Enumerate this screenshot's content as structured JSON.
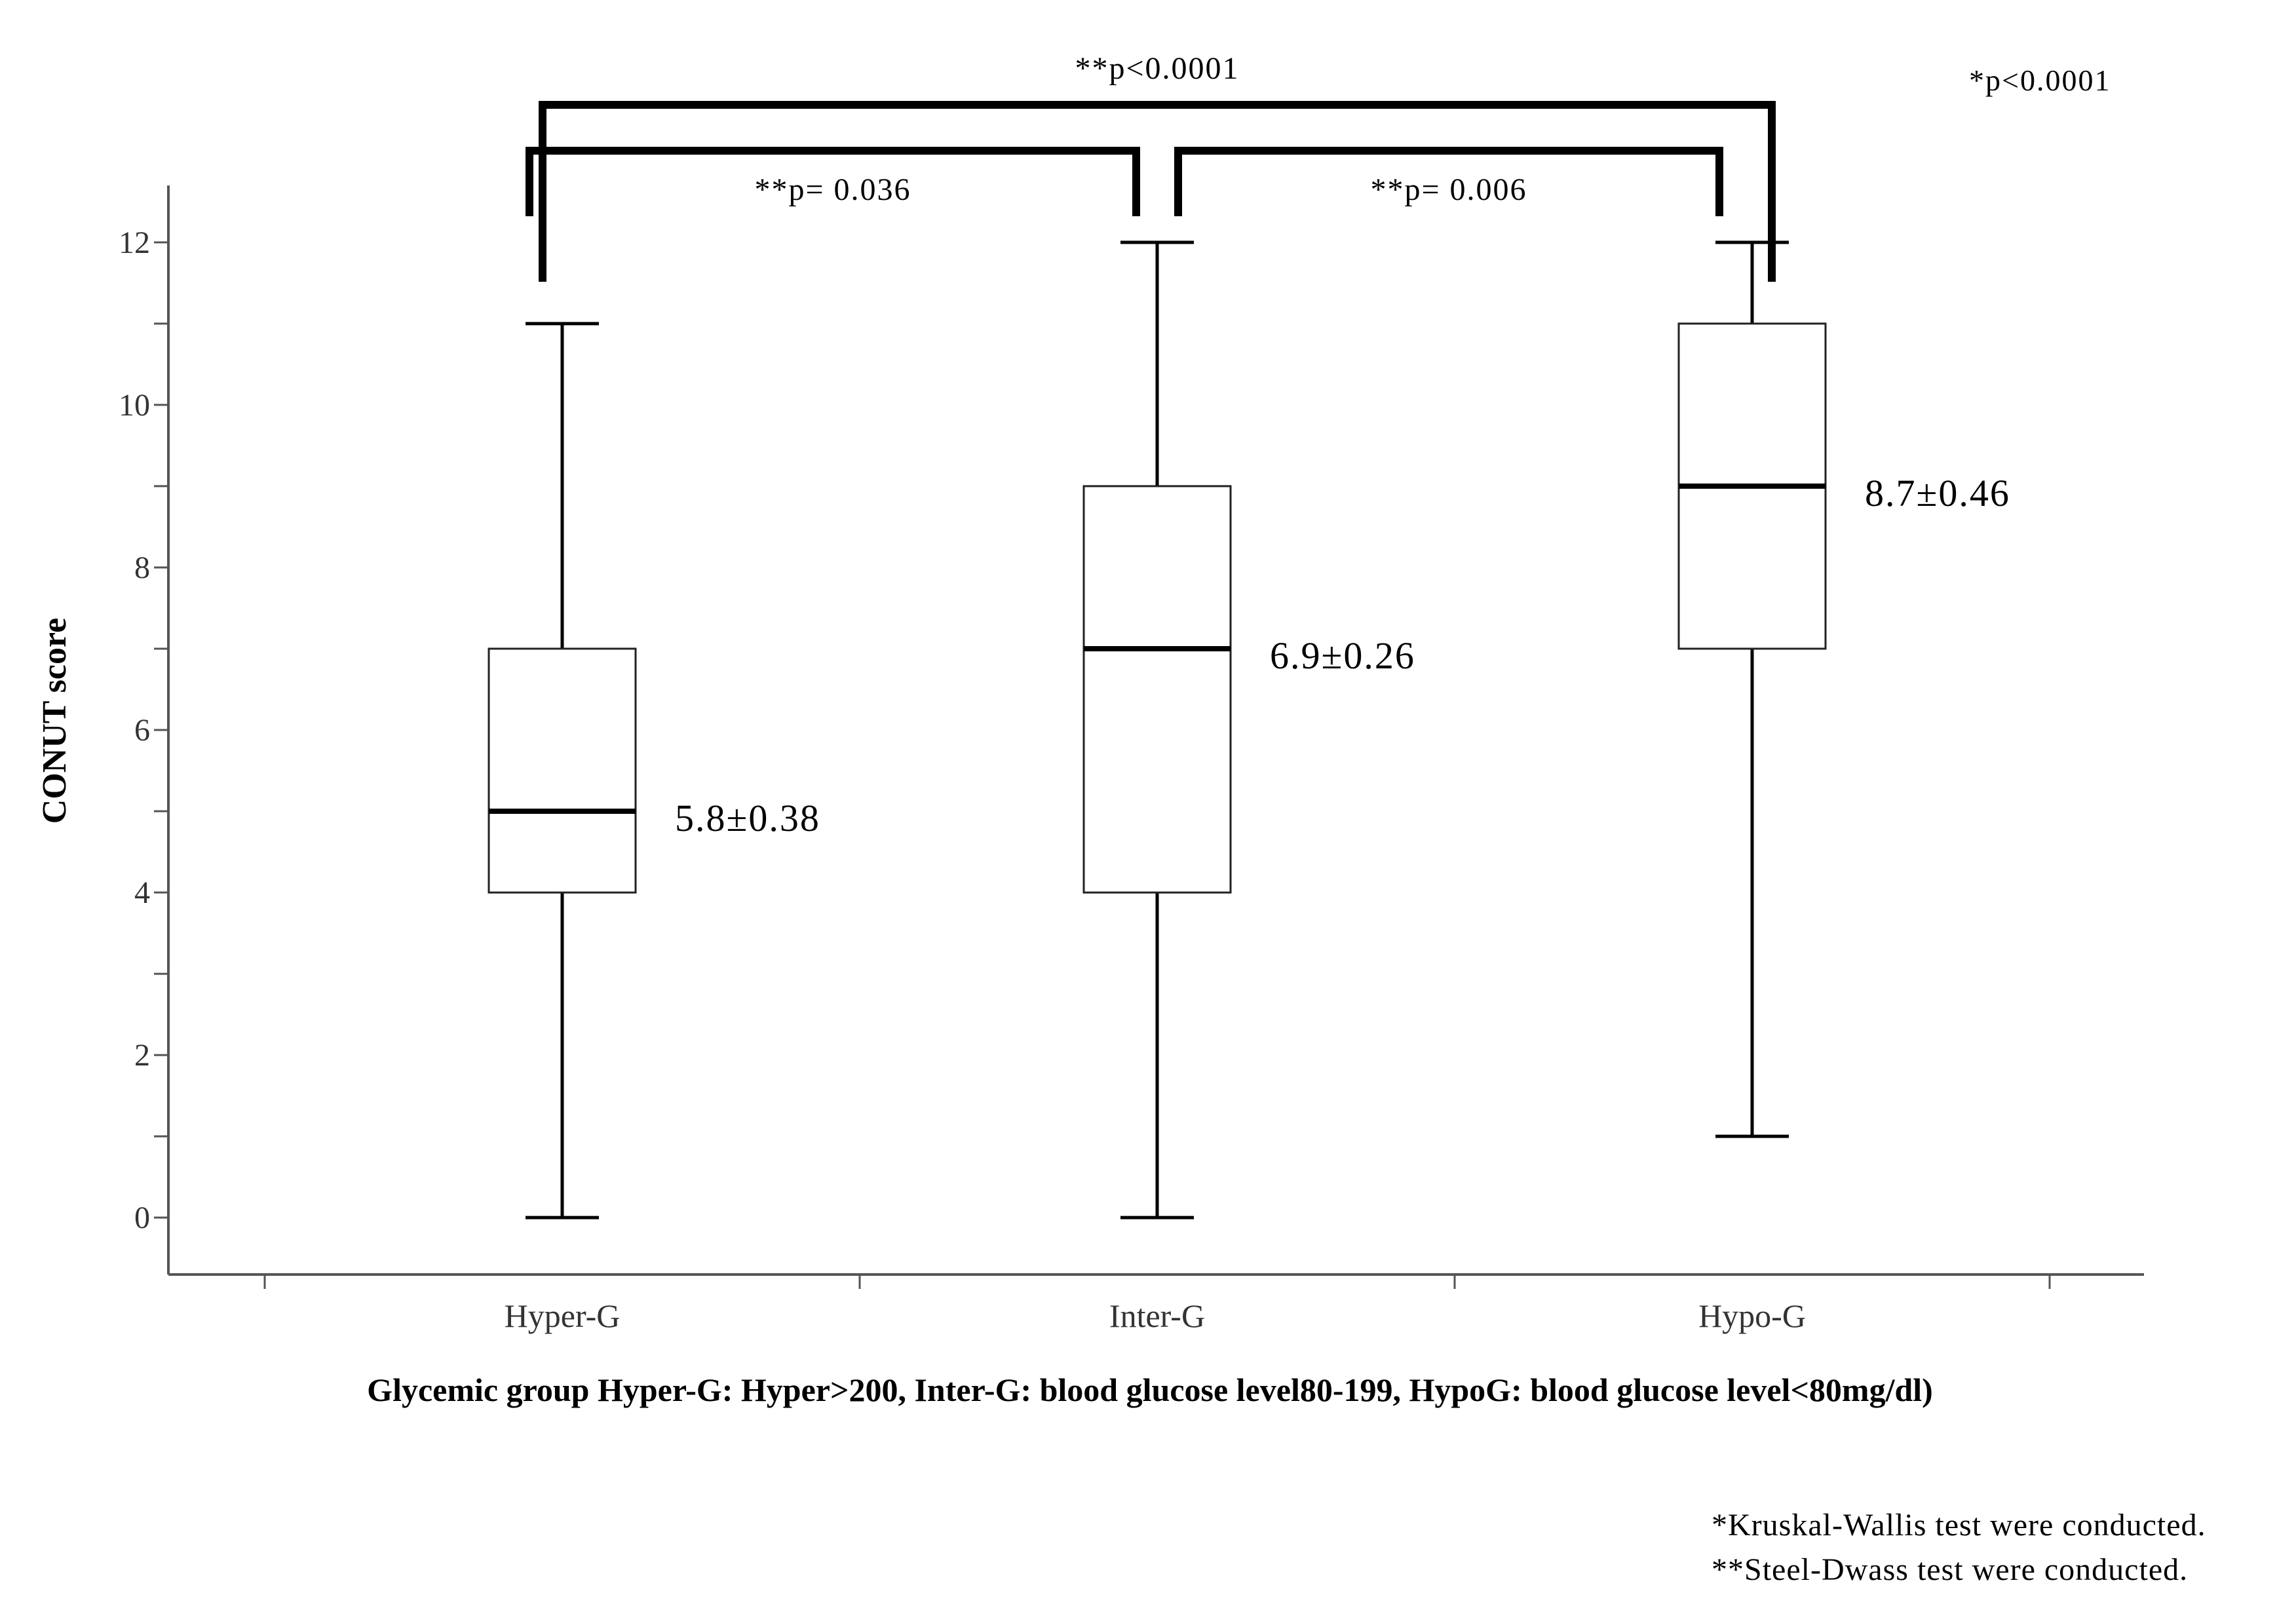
{
  "chart_data": {
    "type": "box",
    "ylabel": "CONUT score",
    "xlabel": "Glycemic group Hyper-G: Hyper>200,  Inter-G: blood glucose level80-199, HypoG: blood glucose level<80mg/dl)",
    "categories": [
      "Hyper-G",
      "Inter-G",
      "Hypo-G"
    ],
    "boxes": [
      {
        "category": "Hyper-G",
        "min": 0,
        "q1": 4,
        "median": 5,
        "q3": 7,
        "max": 11,
        "label": "5.8±0.38"
      },
      {
        "category": "Inter-G",
        "min": 0,
        "q1": 4,
        "median": 7,
        "q3": 9,
        "max": 12,
        "label": "6.9±0.26"
      },
      {
        "category": "Hypo-G",
        "min": 1,
        "q1": 7,
        "median": 9,
        "q3": 11,
        "max": 12,
        "label": "8.7±0.46"
      }
    ],
    "yticks": [
      0,
      2,
      4,
      6,
      8,
      10,
      12
    ],
    "ylim": [
      -0.7,
      12.7
    ],
    "grid": false,
    "comparisons": [
      {
        "from": "Hyper-G",
        "to": "Hypo-G",
        "label": "**p<0.0001"
      },
      {
        "from": "Hyper-G",
        "to": "Inter-G",
        "label": "**p= 0.036"
      },
      {
        "from": "Inter-G",
        "to": "Hypo-G",
        "label": "**p= 0.006"
      }
    ],
    "overall_test": "*p<0.0001"
  },
  "footnotes": [
    "*Kruskal-Wallis test were conducted.",
    "**Steel-Dwass test were conducted."
  ],
  "colors": {
    "ink": "#000000",
    "axis": "#555555",
    "background": "#ffffff"
  }
}
